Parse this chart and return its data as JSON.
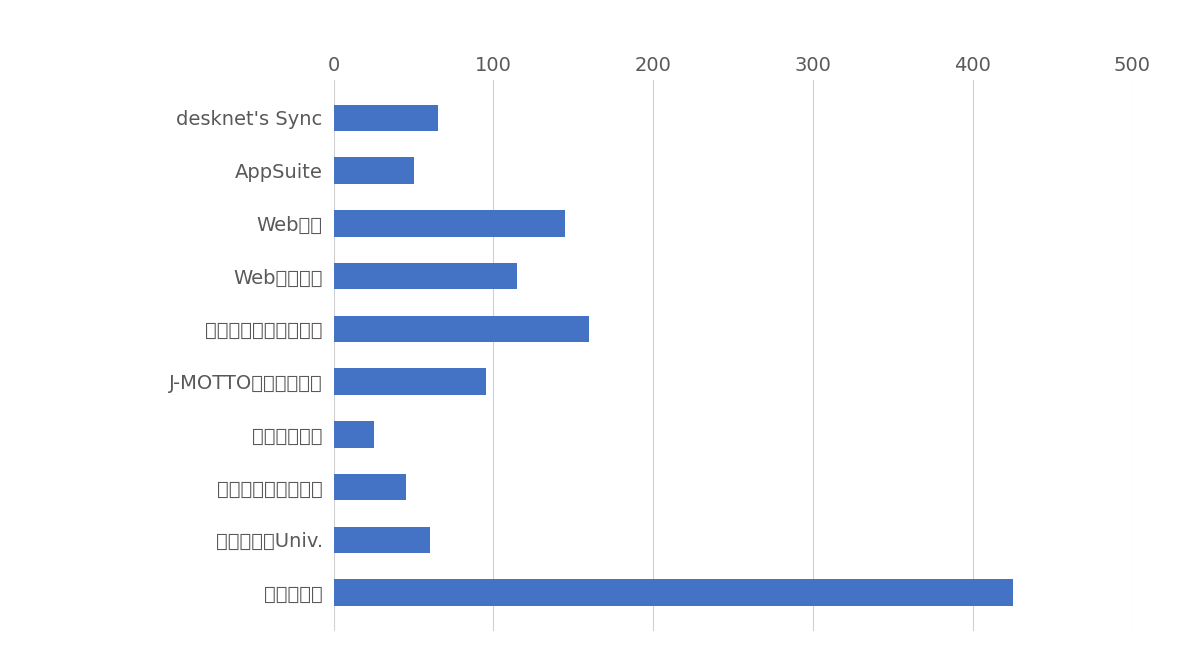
{
  "categories": [
    "desknet's Sync",
    "AppSuite",
    "Web勤怏",
    "Web給与明細",
    "ファイル共有サービス",
    "J-MOTTOワークフロー",
    "企業信用格付",
    "ハッスルモンスター",
    "サイバックUniv.",
    "興味が無い"
  ],
  "values": [
    65,
    50,
    145,
    115,
    160,
    95,
    25,
    45,
    60,
    425
  ],
  "bar_color": "#4472C4",
  "xlim": [
    0,
    500
  ],
  "xticks": [
    0,
    100,
    200,
    300,
    400,
    500
  ],
  "background_color": "#ffffff",
  "bar_height": 0.5,
  "grid_color": "#d0d0d0",
  "label_color": "#595959",
  "label_fontsize": 14,
  "tick_fontsize": 14
}
